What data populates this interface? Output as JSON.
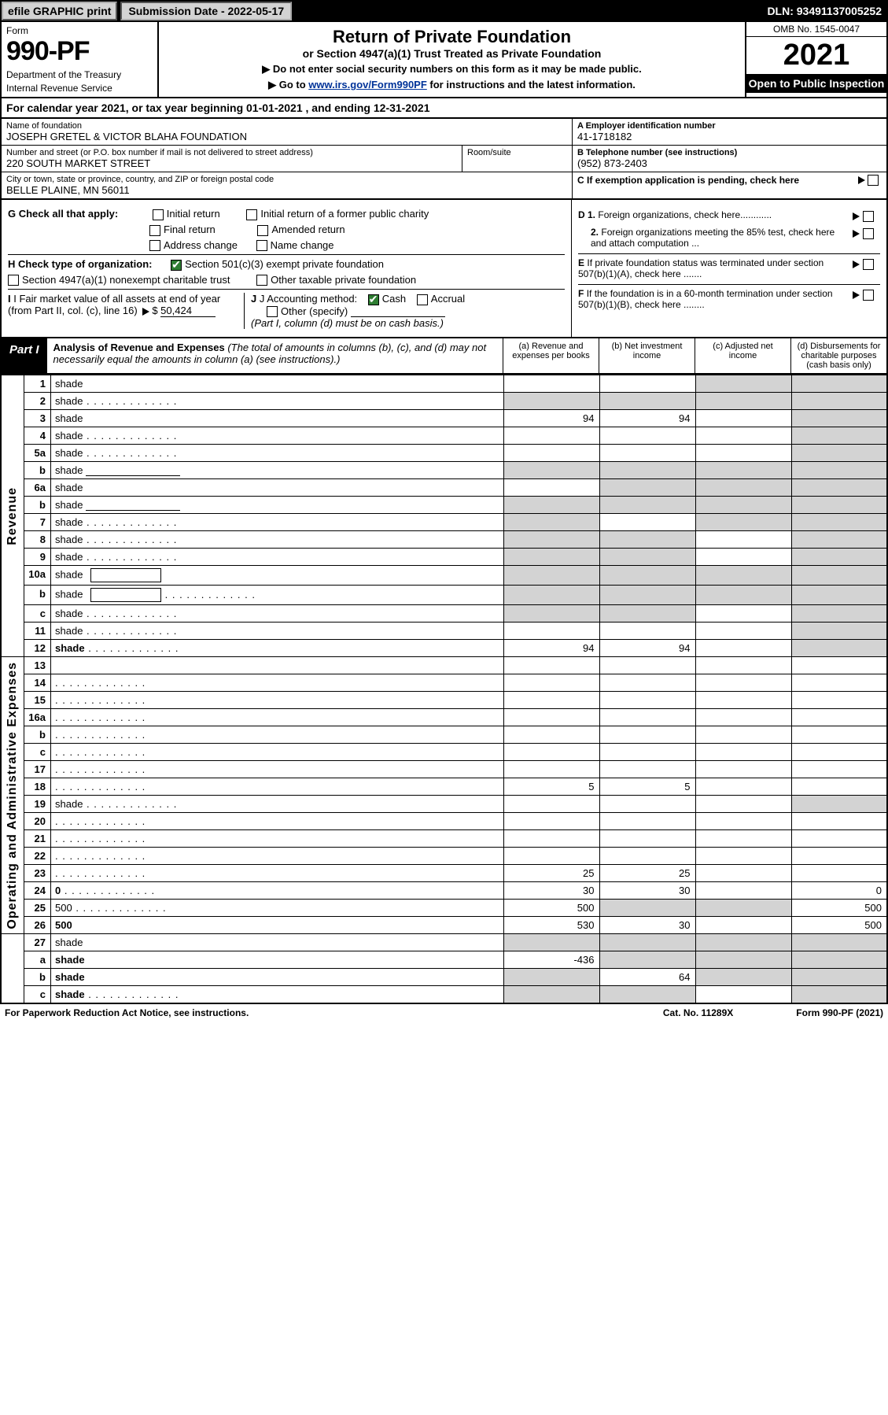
{
  "top_bar": {
    "efile_label": "efile GRAPHIC print",
    "submission_label": "Submission Date - 2022-05-17",
    "dln": "DLN: 93491137005252"
  },
  "header": {
    "form_label": "Form",
    "form_number": "990-PF",
    "dept": "Department of the Treasury",
    "irs": "Internal Revenue Service",
    "title": "Return of Private Foundation",
    "subtitle": "or Section 4947(a)(1) Trust Treated as Private Foundation",
    "note1": "▶ Do not enter social security numbers on this form as it may be made public.",
    "note2_pre": "▶ Go to ",
    "note2_link": "www.irs.gov/Form990PF",
    "note2_post": " for instructions and the latest information.",
    "omb": "OMB No. 1545-0047",
    "year": "2021",
    "open_public": "Open to Public Inspection"
  },
  "cal_year": {
    "text_pre": "For calendar year 2021, or tax year beginning ",
    "begin": "01-01-2021",
    "text_mid": " , and ending ",
    "end": "12-31-2021"
  },
  "foundation": {
    "name_lbl": "Name of foundation",
    "name": "JOSEPH GRETEL & VICTOR BLAHA FOUNDATION",
    "addr_lbl": "Number and street (or P.O. box number if mail is not delivered to street address)",
    "addr": "220 SOUTH MARKET STREET",
    "room_lbl": "Room/suite",
    "room": "",
    "city_lbl": "City or town, state or province, country, and ZIP or foreign postal code",
    "city": "BELLE PLAINE, MN  56011"
  },
  "right_info": {
    "a_lbl": "A Employer identification number",
    "a_val": "41-1718182",
    "b_lbl": "B Telephone number (see instructions)",
    "b_val": "(952) 873-2403",
    "c_lbl": "C If exemption application is pending, check here"
  },
  "checks": {
    "g_lbl": "G Check all that apply:",
    "g_opts": [
      "Initial return",
      "Initial return of a former public charity",
      "Final return",
      "Amended return",
      "Address change",
      "Name change"
    ],
    "h_lbl": "H Check type of organization:",
    "h_opt1": "Section 501(c)(3) exempt private foundation",
    "h_opt2": "Section 4947(a)(1) nonexempt charitable trust",
    "h_opt3": "Other taxable private foundation",
    "i_lbl": "I Fair market value of all assets at end of year (from Part II, col. (c), line 16)",
    "i_val": "50,424",
    "j_lbl": "J Accounting method:",
    "j_cash": "Cash",
    "j_accrual": "Accrual",
    "j_other": "Other (specify)",
    "j_note": "(Part I, column (d) must be on cash basis.)",
    "d1": "D 1. Foreign organizations, check here............",
    "d2": "2. Foreign organizations meeting the 85% test, check here and attach computation ...",
    "e": "E If private foundation status was terminated under section 507(b)(1)(A), check here .......",
    "f": "F If the foundation is in a 60-month termination under section 507(b)(1)(B), check here ........"
  },
  "part1": {
    "tab": "Part I",
    "title_main": "Analysis of Revenue and Expenses",
    "title_sub": " (The total of amounts in columns (b), (c), and (d) may not necessarily equal the amounts in column (a) (see instructions).)",
    "col_a": "(a) Revenue and expenses per books",
    "col_b": "(b) Net investment income",
    "col_c": "(c) Adjusted net income",
    "col_d": "(d) Disbursements for charitable purposes (cash basis only)"
  },
  "rows": [
    {
      "n": "1",
      "d": "shade",
      "a": "",
      "b": "",
      "c": "shade"
    },
    {
      "n": "2",
      "d": "shade",
      "a": "shade",
      "b": "shade",
      "c": "shade",
      "dots": 1
    },
    {
      "n": "3",
      "d": "shade",
      "a": "94",
      "b": "94",
      "c": ""
    },
    {
      "n": "4",
      "d": "shade",
      "a": "",
      "b": "",
      "c": "",
      "dots": 1
    },
    {
      "n": "5a",
      "d": "shade",
      "a": "",
      "b": "",
      "c": "",
      "dots": 1
    },
    {
      "n": "b",
      "d": "shade",
      "a": "shade",
      "b": "shade",
      "c": "shade",
      "inline_line": 1
    },
    {
      "n": "6a",
      "d": "shade",
      "a": "",
      "b": "shade",
      "c": "shade"
    },
    {
      "n": "b",
      "d": "shade",
      "a": "shade",
      "b": "shade",
      "c": "shade",
      "inline_line": 1
    },
    {
      "n": "7",
      "d": "shade",
      "a": "shade",
      "b": "",
      "c": "shade",
      "dots": 1
    },
    {
      "n": "8",
      "d": "shade",
      "a": "shade",
      "b": "shade",
      "c": "",
      "dots": 1
    },
    {
      "n": "9",
      "d": "shade",
      "a": "shade",
      "b": "shade",
      "c": "",
      "dots": 1
    },
    {
      "n": "10a",
      "d": "shade",
      "a": "shade",
      "b": "shade",
      "c": "shade",
      "box": 1
    },
    {
      "n": "b",
      "d": "shade",
      "a": "shade",
      "b": "shade",
      "c": "shade",
      "dots": 1,
      "box": 1
    },
    {
      "n": "c",
      "d": "shade",
      "a": "shade",
      "b": "shade",
      "c": "",
      "dots": 1
    },
    {
      "n": "11",
      "d": "shade",
      "a": "",
      "b": "",
      "c": "",
      "dots": 1
    },
    {
      "n": "12",
      "d": "shade",
      "a": "94",
      "b": "94",
      "c": "",
      "bold": 1,
      "dots": 1
    }
  ],
  "exp_rows": [
    {
      "n": "13",
      "d": "",
      "a": "",
      "b": "",
      "c": ""
    },
    {
      "n": "14",
      "d": "",
      "a": "",
      "b": "",
      "c": "",
      "dots": 1
    },
    {
      "n": "15",
      "d": "",
      "a": "",
      "b": "",
      "c": "",
      "dots": 1
    },
    {
      "n": "16a",
      "d": "",
      "a": "",
      "b": "",
      "c": "",
      "dots": 1
    },
    {
      "n": "b",
      "d": "",
      "a": "",
      "b": "",
      "c": "",
      "dots": 1
    },
    {
      "n": "c",
      "d": "",
      "a": "",
      "b": "",
      "c": "",
      "dots": 1
    },
    {
      "n": "17",
      "d": "",
      "a": "",
      "b": "",
      "c": "",
      "dots": 1
    },
    {
      "n": "18",
      "d": "",
      "a": "5",
      "b": "5",
      "c": "",
      "dots": 1
    },
    {
      "n": "19",
      "d": "shade",
      "a": "",
      "b": "",
      "c": "",
      "dots": 1
    },
    {
      "n": "20",
      "d": "",
      "a": "",
      "b": "",
      "c": "",
      "dots": 1
    },
    {
      "n": "21",
      "d": "",
      "a": "",
      "b": "",
      "c": "",
      "dots": 1
    },
    {
      "n": "22",
      "d": "",
      "a": "",
      "b": "",
      "c": "",
      "dots": 1
    },
    {
      "n": "23",
      "d": "",
      "a": "25",
      "b": "25",
      "c": "",
      "dots": 1
    },
    {
      "n": "24",
      "d": "0",
      "a": "30",
      "b": "30",
      "c": "",
      "bold": 1,
      "dots": 1
    },
    {
      "n": "25",
      "d": "500",
      "a": "500",
      "b": "shade",
      "c": "shade",
      "dots": 1
    },
    {
      "n": "26",
      "d": "500",
      "a": "530",
      "b": "30",
      "c": "",
      "bold": 1
    }
  ],
  "net_rows": [
    {
      "n": "27",
      "d": "shade",
      "a": "shade",
      "b": "shade",
      "c": "shade"
    },
    {
      "n": "a",
      "d": "shade",
      "a": "-436",
      "b": "shade",
      "c": "shade",
      "bold": 1
    },
    {
      "n": "b",
      "d": "shade",
      "a": "shade",
      "b": "64",
      "c": "shade",
      "bold": 1
    },
    {
      "n": "c",
      "d": "shade",
      "a": "shade",
      "b": "shade",
      "c": "",
      "bold": 1,
      "dots": 1
    }
  ],
  "side_labels": {
    "revenue": "Revenue",
    "expenses": "Operating and Administrative Expenses"
  },
  "footer": {
    "left": "For Paperwork Reduction Act Notice, see instructions.",
    "center": "Cat. No. 11289X",
    "right": "Form 990-PF (2021)"
  },
  "colors": {
    "black": "#000000",
    "grey": "#d3d3d3",
    "link": "#003399",
    "check_green": "#2e7d32"
  }
}
